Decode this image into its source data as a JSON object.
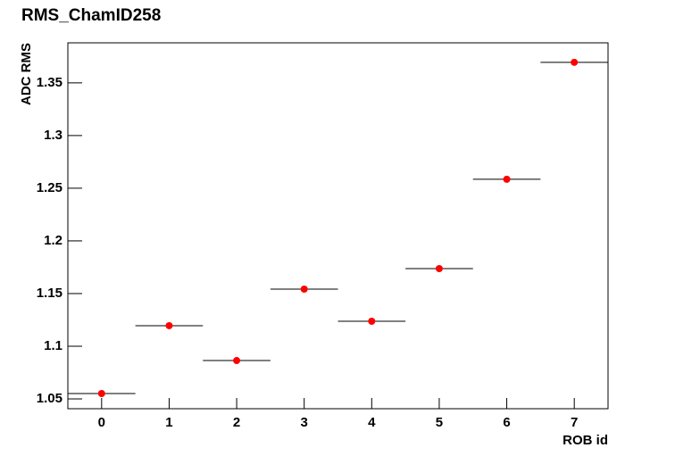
{
  "chart_data": {
    "type": "scatter",
    "title": "RMS_ChamID258",
    "xlabel": "ROB id",
    "ylabel": "ADC RMS",
    "x": [
      0,
      1,
      2,
      3,
      4,
      5,
      6,
      7
    ],
    "xerr": [
      0.5,
      0.5,
      0.5,
      0.5,
      0.5,
      0.5,
      0.5,
      0.5
    ],
    "values": [
      1.0551,
      1.1195,
      1.0864,
      1.1542,
      1.1237,
      1.1737,
      1.2585,
      1.3695
    ],
    "color": "#ff0000",
    "errcolor": "#000000",
    "xlim": [
      -0.5,
      7.5
    ],
    "xticks": [
      0,
      1,
      2,
      3,
      4,
      5,
      6,
      7
    ],
    "ylim": [
      1.0407,
      1.388
    ],
    "yticks": [
      1.05,
      1.1,
      1.15,
      1.2,
      1.25,
      1.3,
      1.35
    ]
  }
}
